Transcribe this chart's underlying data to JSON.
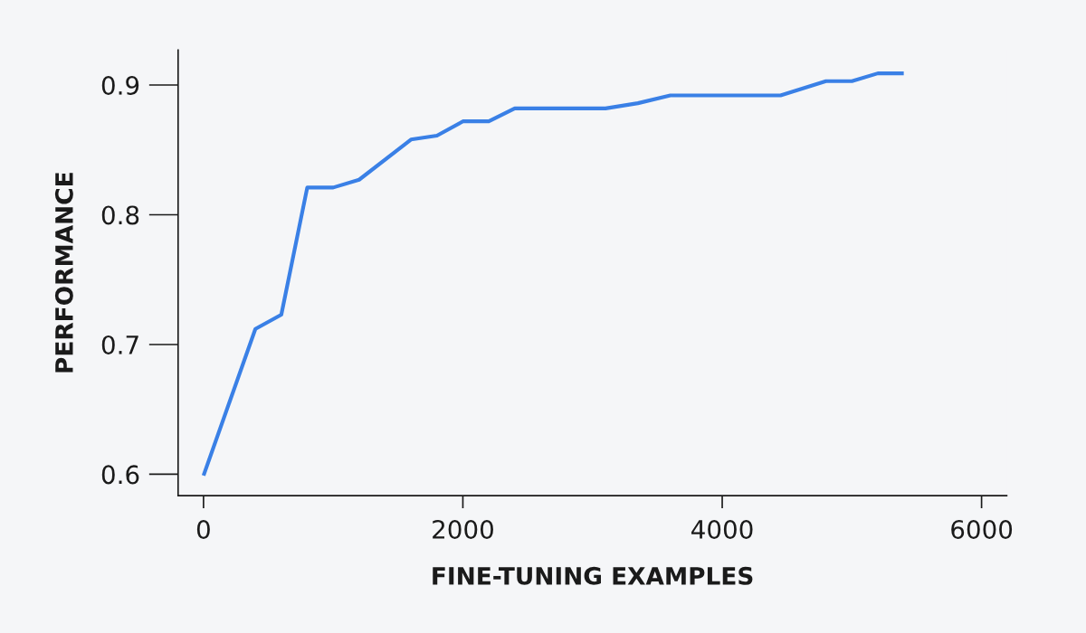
{
  "chart_data": {
    "type": "line",
    "xlabel": "FINE-TUNING EXAMPLES",
    "ylabel": "PERFORMANCE",
    "series": [
      {
        "color": "#3a80e6",
        "x": [
          0,
          400,
          600,
          800,
          1000,
          1200,
          1600,
          1800,
          2000,
          2200,
          2400,
          3100,
          3350,
          3600,
          4450,
          4800,
          5000,
          5200,
          5400
        ],
        "values": [
          0.599,
          0.712,
          0.723,
          0.821,
          0.821,
          0.827,
          0.858,
          0.861,
          0.872,
          0.872,
          0.882,
          0.882,
          0.886,
          0.892,
          0.892,
          0.903,
          0.903,
          0.909,
          0.909
        ]
      }
    ],
    "xlim": [
      -196,
      6194
    ],
    "ylim": [
      0.5835,
      0.927
    ],
    "xticks": [
      0,
      2000,
      4000,
      6000
    ],
    "yticks": [
      0.6,
      0.7,
      0.8,
      0.9
    ],
    "marker": "none",
    "line_style": "solid"
  }
}
